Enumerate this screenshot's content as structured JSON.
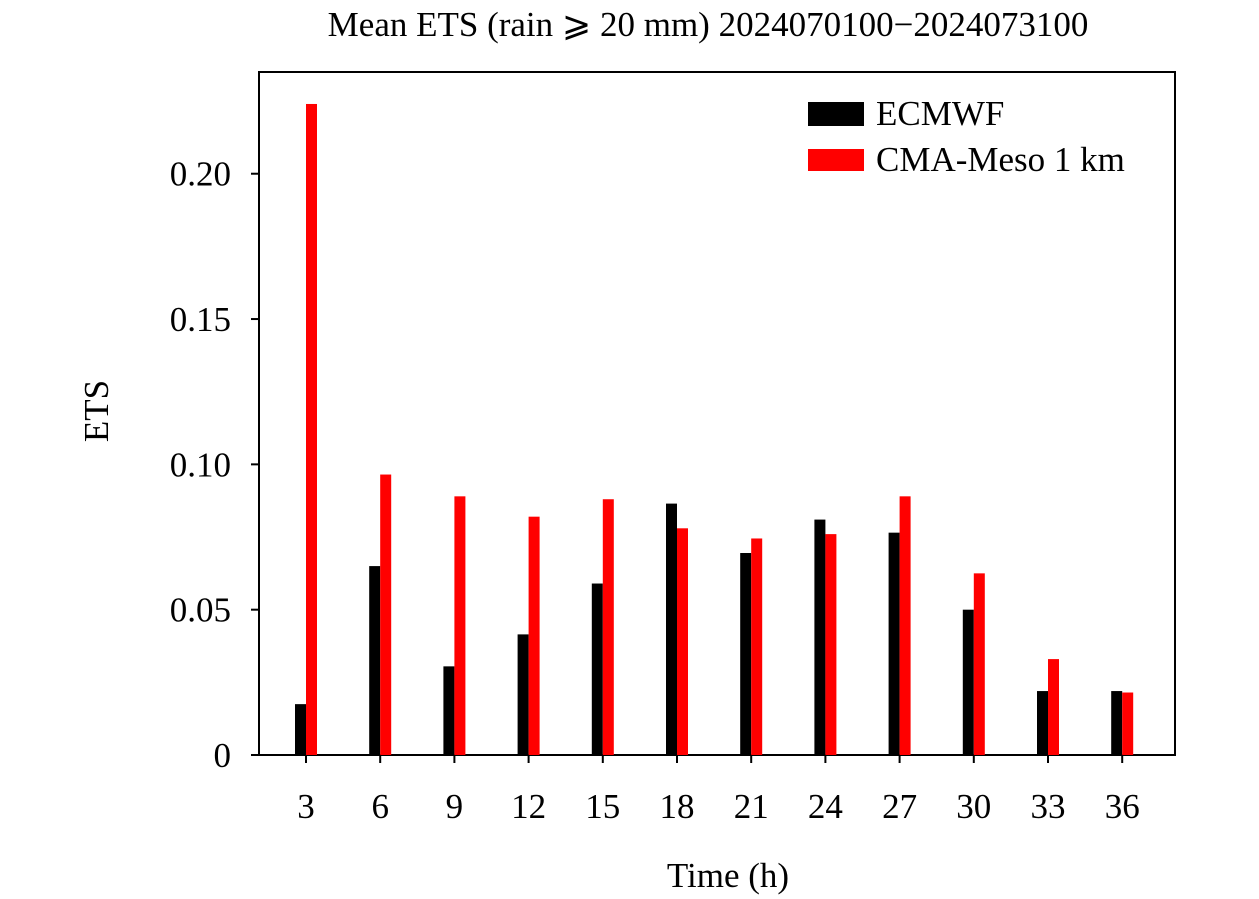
{
  "chart_data": {
    "type": "bar",
    "title": "Mean ETS (rain ⩾ 20 mm) 2024070100−2024073100",
    "xlabel": "Time (h)",
    "ylabel": "ETS",
    "categories": [
      "3",
      "6",
      "9",
      "12",
      "15",
      "18",
      "21",
      "24",
      "27",
      "30",
      "33",
      "36"
    ],
    "ylim": [
      0,
      0.235
    ],
    "yticks": [
      0,
      0.05,
      0.1,
      0.15,
      0.2
    ],
    "ytick_labels": [
      "0",
      "0.05",
      "0.10",
      "0.15",
      "0.20"
    ],
    "grid": false,
    "legend_position": "top-right",
    "series": [
      {
        "name": "ECMWF",
        "color": "#000000",
        "values": [
          0.0175,
          0.065,
          0.0305,
          0.0415,
          0.059,
          0.0865,
          0.0695,
          0.081,
          0.0765,
          0.05,
          0.022,
          0.022
        ]
      },
      {
        "name": "CMA-Meso 1 km",
        "color": "#ff0000",
        "values": [
          0.224,
          0.0965,
          0.089,
          0.082,
          0.088,
          0.078,
          0.0745,
          0.076,
          0.089,
          0.0625,
          0.033,
          0.0215
        ]
      }
    ]
  }
}
